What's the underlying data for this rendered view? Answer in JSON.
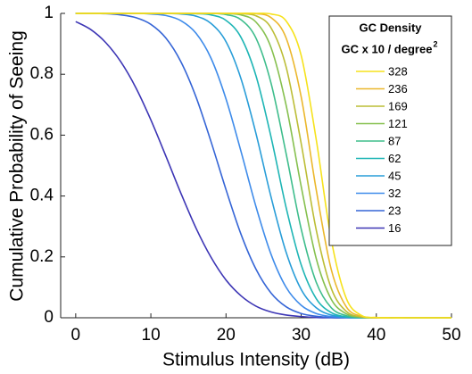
{
  "chart_data": {
    "type": "line",
    "x_label": "Stimulus Intensity (dB)",
    "y_label": "Cumulative Probability of Seeing",
    "legend_title": "GC Density",
    "legend_subtitle": "GC x 10 / degree",
    "legend_subtitle_sup": "2",
    "legend_position": "upper right",
    "grid": false,
    "xlim": [
      -2,
      50
    ],
    "xticks": [
      0,
      10,
      20,
      30,
      40,
      50
    ],
    "ylim": [
      0,
      1
    ],
    "yticks": [
      0,
      0.2,
      0.4,
      0.6,
      0.8,
      1
    ],
    "x": [
      0,
      2,
      4,
      6,
      8,
      10,
      12,
      14,
      16,
      18,
      20,
      22,
      24,
      26,
      28,
      30,
      32,
      34,
      36,
      38,
      40,
      42,
      44,
      46,
      48,
      50
    ],
    "series": [
      {
        "name": "328",
        "color": "#f6e21c",
        "values": [
          1,
          1,
          1,
          1,
          1,
          1,
          1,
          1,
          1,
          1,
          1,
          1,
          1,
          0.998,
          0.975,
          0.862,
          0.586,
          0.257,
          0.064,
          0.008,
          0.001,
          0,
          0,
          0,
          0,
          0
        ]
      },
      {
        "name": "236",
        "color": "#ebb72c",
        "values": [
          1,
          1,
          1,
          1,
          1,
          1,
          1,
          1,
          1,
          1,
          1,
          1,
          0.999,
          0.986,
          0.919,
          0.726,
          0.421,
          0.159,
          0.036,
          0.005,
          0,
          0,
          0,
          0,
          0,
          0
        ]
      },
      {
        "name": "169",
        "color": "#bcbd36",
        "values": [
          1,
          1,
          1,
          1,
          1,
          1,
          1,
          1,
          1,
          1,
          1,
          0.999,
          0.992,
          0.952,
          0.824,
          0.573,
          0.289,
          0.097,
          0.021,
          0.003,
          0,
          0,
          0,
          0,
          0,
          0
        ]
      },
      {
        "name": "121",
        "color": "#86c04f",
        "values": [
          1,
          1,
          1,
          1,
          1,
          1,
          1,
          1,
          1,
          1,
          0.999,
          0.995,
          0.971,
          0.887,
          0.698,
          0.432,
          0.195,
          0.061,
          0.013,
          0.002,
          0,
          0,
          0,
          0,
          0,
          0
        ]
      },
      {
        "name": "87",
        "color": "#3ebd8c",
        "values": [
          1,
          1,
          1,
          1,
          1,
          1,
          1,
          1,
          1,
          1,
          0.996,
          0.979,
          0.918,
          0.77,
          0.539,
          0.292,
          0.117,
          0.033,
          0.007,
          0.001,
          0,
          0,
          0,
          0,
          0,
          0
        ]
      },
      {
        "name": "62",
        "color": "#1eb5b5",
        "values": [
          1,
          1,
          1,
          1,
          1,
          1,
          1,
          1,
          0.999,
          0.995,
          0.977,
          0.921,
          0.794,
          0.593,
          0.362,
          0.174,
          0.063,
          0.017,
          0.003,
          0,
          0,
          0,
          0,
          0,
          0,
          0
        ]
      },
      {
        "name": "45",
        "color": "#289dd8",
        "values": [
          1,
          1,
          1,
          1,
          1,
          1,
          1,
          0.998,
          0.991,
          0.967,
          0.907,
          0.785,
          0.604,
          0.396,
          0.215,
          0.093,
          0.033,
          0.009,
          0.002,
          0,
          0,
          0,
          0,
          0,
          0,
          0
        ]
      },
      {
        "name": "32",
        "color": "#3e8bea",
        "values": [
          1,
          1,
          1,
          1,
          1,
          0.998,
          0.993,
          0.976,
          0.935,
          0.853,
          0.719,
          0.546,
          0.364,
          0.208,
          0.1,
          0.041,
          0.014,
          0.004,
          0.001,
          0,
          0,
          0,
          0,
          0,
          0,
          0
        ]
      },
      {
        "name": "23",
        "color": "#3565d6",
        "values": [
          1,
          1,
          0.999,
          0.995,
          0.986,
          0.964,
          0.919,
          0.841,
          0.726,
          0.579,
          0.421,
          0.274,
          0.159,
          0.081,
          0.036,
          0.014,
          0.005,
          0.001,
          0,
          0,
          0,
          0,
          0,
          0,
          0,
          0
        ]
      },
      {
        "name": "16",
        "color": "#3d36b5",
        "values": [
          0.973,
          0.947,
          0.904,
          0.841,
          0.756,
          0.65,
          0.531,
          0.409,
          0.295,
          0.199,
          0.124,
          0.072,
          0.038,
          0.019,
          0.009,
          0.004,
          0.001,
          0,
          0,
          0,
          0,
          0,
          0,
          0,
          0,
          0
        ]
      }
    ]
  }
}
